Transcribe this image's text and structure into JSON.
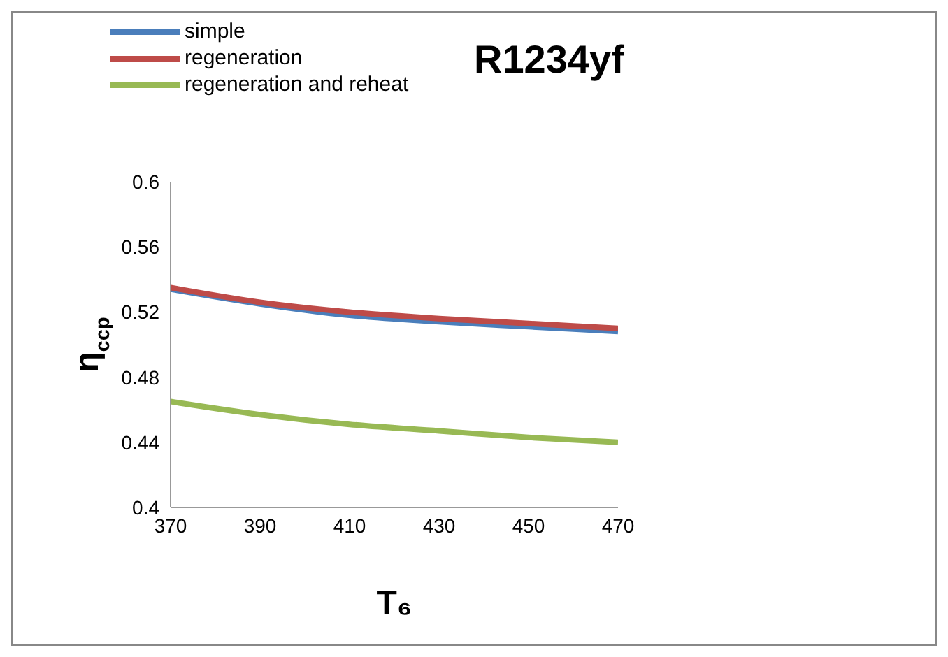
{
  "chart_data": {
    "type": "line",
    "title": "R1234yf",
    "xlabel": "T₆",
    "ylabel": "η$_{ccp}$",
    "x": [
      370,
      390,
      410,
      430,
      450,
      470
    ],
    "series": [
      {
        "name": "simple",
        "color": "#4a7ebb",
        "values": [
          0.534,
          0.525,
          0.518,
          0.514,
          0.511,
          0.508
        ]
      },
      {
        "name": "regeneration",
        "color": "#be4b48",
        "values": [
          0.535,
          0.526,
          0.52,
          0.516,
          0.513,
          0.51
        ]
      },
      {
        "name": "regeneration and reheat",
        "color": "#98b954",
        "values": [
          0.465,
          0.457,
          0.451,
          0.447,
          0.443,
          0.44
        ]
      }
    ],
    "xlim": [
      370,
      470
    ],
    "xticks": [
      370,
      390,
      410,
      430,
      450,
      470
    ],
    "ylim": [
      0.4,
      0.6
    ],
    "yticks": [
      0.4,
      0.44,
      0.48,
      0.52,
      0.56,
      0.6
    ],
    "grid": false,
    "legend": "top left",
    "marker": "none",
    "line_style": "solid"
  }
}
